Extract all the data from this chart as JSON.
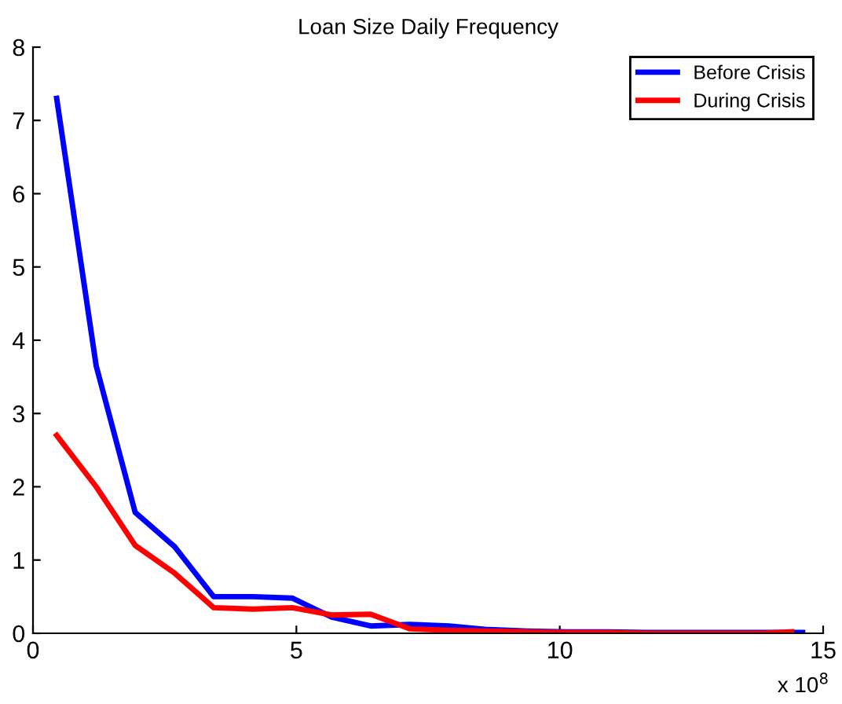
{
  "chart_data": {
    "type": "line",
    "title": "Loan Size Daily Frequency",
    "x": [
      0.45,
      1.2,
      1.94,
      2.69,
      3.43,
      4.18,
      4.92,
      5.67,
      6.41,
      7.16,
      7.9,
      8.65,
      9.39,
      10.14,
      10.88,
      11.63,
      12.37,
      13.12,
      13.86,
      14.61
    ],
    "series": [
      {
        "name": "Before Crisis",
        "color": "#0000ff",
        "values": [
          7.3,
          3.65,
          1.65,
          1.18,
          0.5,
          0.5,
          0.48,
          0.22,
          0.1,
          0.12,
          0.1,
          0.05,
          0.03,
          0.02,
          0.02,
          0.01,
          0.01,
          0.01,
          0.01,
          0.01
        ]
      },
      {
        "name": "During Crisis",
        "color": "#ff0000",
        "x": [
          0.45,
          1.2,
          1.94,
          2.69,
          3.43,
          4.18,
          4.92,
          5.67,
          6.41,
          7.16,
          7.9,
          8.65,
          9.39,
          10.14,
          10.88,
          11.63,
          12.37,
          13.12,
          13.86,
          14.4
        ],
        "values": [
          2.7,
          2.0,
          1.2,
          0.82,
          0.35,
          0.33,
          0.35,
          0.25,
          0.26,
          0.06,
          0.04,
          0.03,
          0.02,
          0.01,
          0.01,
          0.0,
          0.0,
          0.0,
          0.0,
          0.02
        ]
      }
    ],
    "xlim": [
      0,
      15
    ],
    "xticks": [
      0,
      5,
      10,
      15
    ],
    "ylim": [
      0,
      8
    ],
    "yticks": [
      0,
      1,
      2,
      3,
      4,
      5,
      6,
      7,
      8
    ],
    "annotations": [
      "x 10$^{8}$"
    ],
    "grid": false,
    "legend": "top right",
    "marker": "none",
    "line_style": "solid"
  }
}
